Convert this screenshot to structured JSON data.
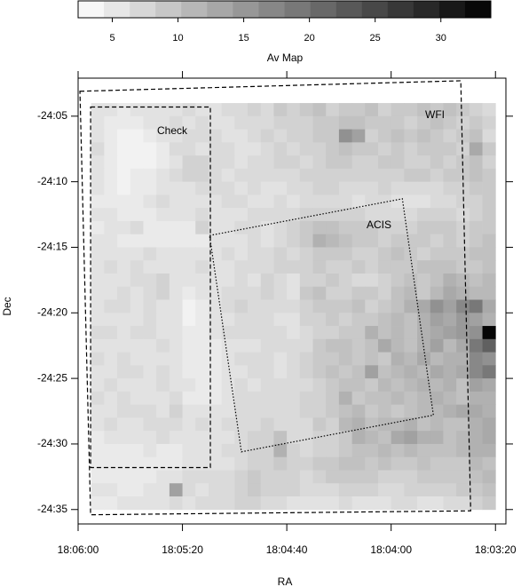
{
  "chart_data": {
    "type": "heatmap",
    "x_label": "RA",
    "y_label": "Dec",
    "xlim": [
      65160,
      64996
    ],
    "ylim": [
      -1476.1,
      -1442.1
    ],
    "xticks": [
      {
        "value": 65160,
        "label": "18:06:00"
      },
      {
        "value": 65120,
        "label": "18:05:20"
      },
      {
        "value": 65080,
        "label": "18:04:40"
      },
      {
        "value": 65040,
        "label": "18:04:00"
      },
      {
        "value": 65000,
        "label": "18:03:20"
      }
    ],
    "yticks": [
      {
        "value": -1445,
        "label": "-24:05"
      },
      {
        "value": -1450,
        "label": "-24:10"
      },
      {
        "value": -1455,
        "label": "-24:15"
      },
      {
        "value": -1460,
        "label": "-24:20"
      },
      {
        "value": -1465,
        "label": "-24:25"
      },
      {
        "value": -1470,
        "label": "-24:30"
      },
      {
        "value": -1475,
        "label": "-24:35"
      }
    ],
    "colorbar": {
      "label": "Av Map",
      "lim": [
        2.4,
        33.8
      ],
      "ticks": [
        5,
        10,
        15,
        20,
        25,
        30
      ]
    },
    "x": [
      65152.5,
      65147.5,
      65142.5,
      65137.5,
      65132.5,
      65127.5,
      65122.5,
      65117.5,
      65112.5,
      65107.5,
      65102.5,
      65097.5,
      65092.5,
      65087.5,
      65082.5,
      65077.5,
      65072.5,
      65067.5,
      65062.5,
      65057.5,
      65052.5,
      65047.5,
      65042.5,
      65037.5,
      65032.5,
      65027.5,
      65022.5,
      65017.5,
      65012.5,
      65007.5,
      65002.5
    ],
    "y": [
      -1444.5,
      -1445.5,
      -1446.5,
      -1447.5,
      -1448.5,
      -1449.5,
      -1450.5,
      -1451.5,
      -1452.5,
      -1453.5,
      -1454.5,
      -1455.5,
      -1456.5,
      -1457.5,
      -1458.5,
      -1459.5,
      -1460.5,
      -1461.5,
      -1462.5,
      -1463.5,
      -1464.5,
      -1465.5,
      -1466.5,
      -1467.5,
      -1468.5,
      -1469.5,
      -1470.5,
      -1471.5,
      -1472.5,
      -1473.5,
      -1474.5
    ],
    "z": [
      [
        6,
        6,
        5,
        6,
        6,
        6,
        6,
        7,
        6,
        6,
        7,
        7,
        8,
        7,
        9,
        8,
        9,
        10,
        8,
        9,
        9,
        10,
        8,
        9,
        9,
        10,
        9,
        10,
        9,
        8,
        7
      ],
      [
        6,
        5,
        5,
        5,
        6,
        6,
        7,
        6,
        7,
        6,
        6,
        7,
        7,
        7,
        8,
        8,
        8,
        9,
        9,
        10,
        10,
        9,
        9,
        9,
        8,
        9,
        10,
        9,
        8,
        9,
        8
      ],
      [
        6,
        5,
        4,
        4,
        5,
        6,
        6,
        7,
        7,
        7,
        6,
        6,
        7,
        8,
        7,
        8,
        8,
        9,
        9,
        16,
        14,
        8,
        9,
        10,
        9,
        10,
        9,
        8,
        9,
        10,
        7
      ],
      [
        7,
        5,
        4,
        4,
        4,
        5,
        7,
        7,
        6,
        7,
        7,
        6,
        6,
        7,
        8,
        7,
        8,
        8,
        9,
        10,
        9,
        9,
        8,
        9,
        8,
        9,
        9,
        9,
        8,
        13,
        9
      ],
      [
        6,
        5,
        4,
        4,
        4,
        5,
        6,
        8,
        8,
        7,
        7,
        6,
        7,
        7,
        8,
        8,
        7,
        8,
        9,
        9,
        8,
        8,
        9,
        9,
        8,
        8,
        9,
        8,
        9,
        10,
        8
      ],
      [
        6,
        5,
        4,
        5,
        5,
        6,
        7,
        8,
        8,
        7,
        6,
        7,
        7,
        7,
        7,
        7,
        8,
        8,
        8,
        8,
        8,
        8,
        8,
        8,
        9,
        9,
        8,
        9,
        9,
        10,
        9
      ],
      [
        6,
        5,
        4,
        5,
        5,
        6,
        6,
        6,
        7,
        7,
        7,
        6,
        7,
        6,
        6,
        7,
        7,
        8,
        8,
        7,
        7,
        7,
        8,
        7,
        7,
        7,
        7,
        8,
        8,
        9,
        9
      ],
      [
        5,
        5,
        5,
        5,
        6,
        7,
        6,
        6,
        6,
        6,
        7,
        7,
        6,
        6,
        7,
        6,
        7,
        7,
        7,
        7,
        6,
        7,
        7,
        6,
        6,
        6,
        7,
        7,
        8,
        8,
        9
      ],
      [
        6,
        6,
        5,
        5,
        5,
        6,
        6,
        6,
        7,
        6,
        6,
        6,
        7,
        7,
        7,
        7,
        8,
        8,
        8,
        8,
        8,
        7,
        7,
        7,
        7,
        8,
        8,
        8,
        7,
        8,
        9
      ],
      [
        5,
        6,
        6,
        7,
        5,
        5,
        5,
        5,
        8,
        6,
        6,
        7,
        7,
        6,
        7,
        8,
        9,
        10,
        10,
        9,
        9,
        9,
        8,
        8,
        8,
        9,
        9,
        9,
        8,
        9,
        9
      ],
      [
        6,
        6,
        5,
        5,
        5,
        5,
        5,
        5,
        5,
        6,
        6,
        6,
        7,
        6,
        7,
        8,
        9,
        12,
        11,
        10,
        9,
        9,
        8,
        9,
        9,
        9,
        8,
        9,
        8,
        9,
        10
      ],
      [
        6,
        6,
        6,
        6,
        7,
        6,
        6,
        6,
        6,
        6,
        7,
        6,
        7,
        7,
        8,
        7,
        8,
        9,
        9,
        9,
        8,
        8,
        9,
        10,
        9,
        8,
        9,
        9,
        9,
        10,
        10
      ],
      [
        6,
        7,
        6,
        7,
        6,
        6,
        6,
        6,
        7,
        6,
        6,
        7,
        7,
        7,
        8,
        8,
        8,
        9,
        8,
        8,
        9,
        8,
        9,
        9,
        9,
        10,
        10,
        10,
        9,
        9,
        10
      ],
      [
        6,
        6,
        6,
        7,
        7,
        8,
        6,
        6,
        6,
        6,
        6,
        7,
        6,
        8,
        7,
        6,
        8,
        8,
        9,
        8,
        7,
        7,
        8,
        9,
        10,
        9,
        10,
        12,
        11,
        10,
        11
      ],
      [
        6,
        6,
        7,
        6,
        7,
        8,
        6,
        5,
        6,
        6,
        7,
        7,
        7,
        8,
        7,
        6,
        9,
        10,
        8,
        8,
        9,
        9,
        8,
        10,
        11,
        9,
        11,
        13,
        12,
        11,
        11
      ],
      [
        6,
        7,
        7,
        6,
        7,
        6,
        6,
        4,
        5,
        6,
        7,
        8,
        7,
        7,
        7,
        7,
        8,
        9,
        9,
        9,
        10,
        8,
        9,
        10,
        12,
        13,
        16,
        14,
        17,
        19,
        13
      ],
      [
        6,
        6,
        6,
        6,
        7,
        6,
        6,
        4,
        5,
        6,
        6,
        7,
        7,
        7,
        6,
        6,
        8,
        8,
        9,
        8,
        9,
        9,
        10,
        11,
        10,
        12,
        14,
        13,
        15,
        14,
        12
      ],
      [
        7,
        7,
        6,
        7,
        7,
        6,
        6,
        5,
        5,
        6,
        7,
        7,
        7,
        7,
        7,
        6,
        7,
        8,
        8,
        9,
        9,
        12,
        10,
        11,
        10,
        12,
        13,
        14,
        15,
        16,
        33
      ],
      [
        6,
        6,
        6,
        6,
        6,
        7,
        6,
        5,
        5,
        5,
        6,
        6,
        6,
        7,
        7,
        7,
        7,
        9,
        10,
        10,
        9,
        10,
        13,
        11,
        10,
        12,
        14,
        11,
        13,
        19,
        22
      ],
      [
        7,
        6,
        7,
        6,
        6,
        6,
        6,
        5,
        5,
        5,
        6,
        7,
        7,
        7,
        6,
        7,
        8,
        9,
        9,
        10,
        9,
        10,
        9,
        12,
        11,
        13,
        11,
        12,
        12,
        17,
        16
      ],
      [
        6,
        6,
        7,
        7,
        6,
        7,
        6,
        5,
        5,
        5,
        6,
        6,
        7,
        7,
        6,
        7,
        8,
        9,
        10,
        9,
        10,
        14,
        10,
        11,
        12,
        11,
        13,
        12,
        13,
        17,
        19
      ],
      [
        6,
        7,
        6,
        6,
        6,
        7,
        6,
        6,
        5,
        5,
        6,
        7,
        6,
        7,
        7,
        7,
        7,
        8,
        9,
        10,
        10,
        9,
        11,
        10,
        11,
        12,
        11,
        12,
        10,
        14,
        13
      ],
      [
        7,
        6,
        7,
        6,
        6,
        6,
        7,
        5,
        5,
        5,
        6,
        7,
        7,
        7,
        7,
        7,
        8,
        8,
        9,
        12,
        9,
        10,
        10,
        11,
        10,
        11,
        12,
        11,
        10,
        12,
        12
      ],
      [
        6,
        6,
        7,
        7,
        7,
        6,
        8,
        6,
        6,
        6,
        6,
        7,
        7,
        7,
        7,
        7,
        8,
        8,
        9,
        10,
        11,
        9,
        10,
        9,
        10,
        11,
        11,
        12,
        13,
        13,
        12
      ],
      [
        6,
        7,
        6,
        6,
        7,
        7,
        7,
        6,
        7,
        6,
        7,
        7,
        7,
        8,
        7,
        7,
        7,
        9,
        8,
        11,
        12,
        10,
        11,
        11,
        12,
        10,
        11,
        10,
        10,
        12,
        13
      ],
      [
        5,
        6,
        6,
        6,
        6,
        7,
        6,
        6,
        6,
        6,
        6,
        7,
        8,
        8,
        10,
        7,
        7,
        8,
        8,
        9,
        12,
        11,
        10,
        13,
        14,
        12,
        12,
        10,
        11,
        12,
        13
      ],
      [
        5,
        5,
        5,
        5,
        6,
        5,
        5,
        6,
        6,
        6,
        7,
        7,
        8,
        8,
        12,
        8,
        7,
        8,
        8,
        9,
        10,
        10,
        11,
        10,
        11,
        10,
        10,
        10,
        11,
        12,
        12
      ],
      [
        5,
        5,
        5,
        5,
        5,
        5,
        5,
        6,
        6,
        6,
        6,
        7,
        8,
        8,
        9,
        8,
        8,
        9,
        9,
        10,
        10,
        9,
        10,
        9,
        9,
        10,
        9,
        9,
        9,
        11,
        10
      ],
      [
        5,
        5,
        5,
        5,
        5,
        6,
        6,
        7,
        7,
        7,
        7,
        8,
        9,
        8,
        8,
        8,
        7,
        8,
        9,
        9,
        9,
        9,
        8,
        8,
        8,
        9,
        9,
        9,
        9,
        10,
        11
      ],
      [
        6,
        6,
        5,
        5,
        6,
        6,
        14,
        7,
        6,
        7,
        7,
        8,
        9,
        8,
        8,
        8,
        7,
        7,
        7,
        8,
        8,
        8,
        7,
        7,
        8,
        8,
        8,
        8,
        9,
        9,
        10
      ],
      [
        5,
        5,
        6,
        6,
        6,
        6,
        7,
        6,
        7,
        7,
        7,
        8,
        8,
        7,
        7,
        6,
        6,
        6,
        6,
        7,
        6,
        6,
        6,
        7,
        7,
        6,
        6,
        7,
        7,
        8,
        9
      ]
    ],
    "regions": [
      {
        "name": "WFI",
        "style": "dashed",
        "ra": [
          65159.3,
          65013.3,
          65009.5,
          65155.2
        ],
        "dec": [
          -1443.1,
          -1442.3,
          -1475.1,
          -1475.4
        ]
      },
      {
        "name": "Check",
        "style": "dashed",
        "ra": [
          65155.2,
          65109.3,
          65109.3,
          65155.2
        ],
        "dec": [
          -1444.3,
          -1444.3,
          -1471.8,
          -1471.8
        ]
      },
      {
        "name": "ACIS",
        "style": "dotted",
        "ra": [
          65109.6,
          65035.7,
          65023.8,
          65097.4
        ],
        "dec": [
          -1454.1,
          -1451.3,
          -1467.8,
          -1470.6
        ]
      }
    ]
  }
}
